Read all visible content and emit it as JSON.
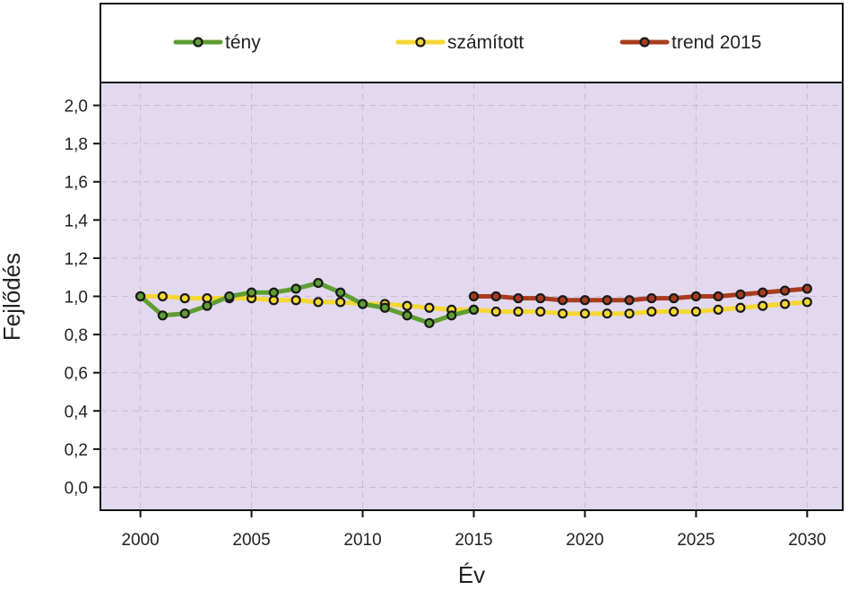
{
  "chart_data": {
    "type": "line",
    "title": "",
    "xlabel": "Év",
    "ylabel": "Fejlődés",
    "xlim": [
      1998.2,
      2031.6
    ],
    "ylim": [
      -0.12,
      2.12
    ],
    "grid": true,
    "legend_position": "top",
    "plot_background": "#e3d9ef",
    "x_ticks": [
      2000,
      2005,
      2010,
      2015,
      2020,
      2025,
      2030
    ],
    "x_tick_labels": [
      "2000",
      "2005",
      "2010",
      "2015",
      "2020",
      "2025",
      "2030"
    ],
    "y_ticks": [
      0,
      0.2,
      0.4,
      0.6,
      0.8,
      1.0,
      1.2,
      1.4,
      1.6,
      1.8,
      2.0
    ],
    "y_tick_labels": [
      "0,0",
      "0,2",
      "0,4",
      "0,6",
      "0,8",
      "1,0",
      "1,2",
      "1,4",
      "1,6",
      "1,8",
      "2,0"
    ],
    "series": [
      {
        "name": "tény",
        "color": "#5e9e32",
        "marker_fill": "#5e9e32",
        "x": [
          2000,
          2001,
          2002,
          2003,
          2004,
          2005,
          2006,
          2007,
          2008,
          2009,
          2010,
          2011,
          2012,
          2013,
          2014,
          2015
        ],
        "values": [
          1.0,
          0.9,
          0.91,
          0.95,
          1.0,
          1.02,
          1.02,
          1.04,
          1.07,
          1.02,
          0.96,
          0.94,
          0.9,
          0.86,
          0.9,
          0.93
        ]
      },
      {
        "name": "számított",
        "color": "#f5d733",
        "marker_fill": "#f5d733",
        "x": [
          2000,
          2001,
          2002,
          2003,
          2004,
          2005,
          2006,
          2007,
          2008,
          2009,
          2010,
          2011,
          2012,
          2013,
          2014,
          2015,
          2016,
          2017,
          2018,
          2019,
          2020,
          2021,
          2022,
          2023,
          2024,
          2025,
          2026,
          2027,
          2028,
          2029,
          2030
        ],
        "values": [
          1.0,
          1.0,
          0.99,
          0.99,
          0.99,
          0.99,
          0.98,
          0.98,
          0.97,
          0.97,
          0.96,
          0.96,
          0.95,
          0.94,
          0.93,
          0.93,
          0.92,
          0.92,
          0.92,
          0.91,
          0.91,
          0.91,
          0.91,
          0.92,
          0.92,
          0.92,
          0.93,
          0.94,
          0.95,
          0.96,
          0.97
        ]
      },
      {
        "name": "trend 2015",
        "color": "#a83c1e",
        "marker_fill": "#a83c1e",
        "x": [
          2015,
          2016,
          2017,
          2018,
          2019,
          2020,
          2021,
          2022,
          2023,
          2024,
          2025,
          2026,
          2027,
          2028,
          2029,
          2030
        ],
        "values": [
          1.0,
          1.0,
          0.99,
          0.99,
          0.98,
          0.98,
          0.98,
          0.98,
          0.99,
          0.99,
          1.0,
          1.0,
          1.01,
          1.02,
          1.03,
          1.04
        ]
      }
    ]
  }
}
